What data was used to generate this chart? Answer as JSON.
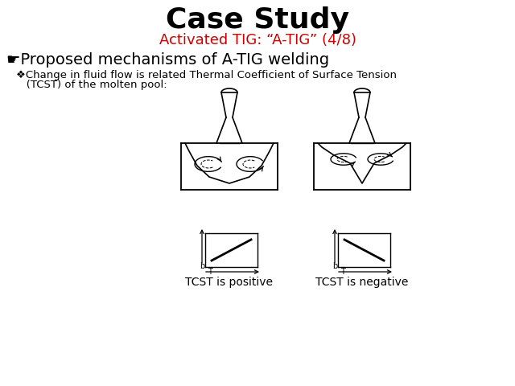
{
  "title": "Case Study",
  "subtitle": "Activated TIG: “A-TIG” (4/8)",
  "title_color": "#000000",
  "subtitle_color": "#cc0000",
  "bg_color": "#ffffff",
  "main_bullet": "☛Proposed mechanisms of A-TIG welding",
  "sub_line1": "❖Change in fluid flow is related Thermal Coefficient of Surface Tension",
  "sub_line2": "   (TCST) of the molten pool:",
  "label_left": "TCST is positive",
  "label_right": "TCST is negative"
}
